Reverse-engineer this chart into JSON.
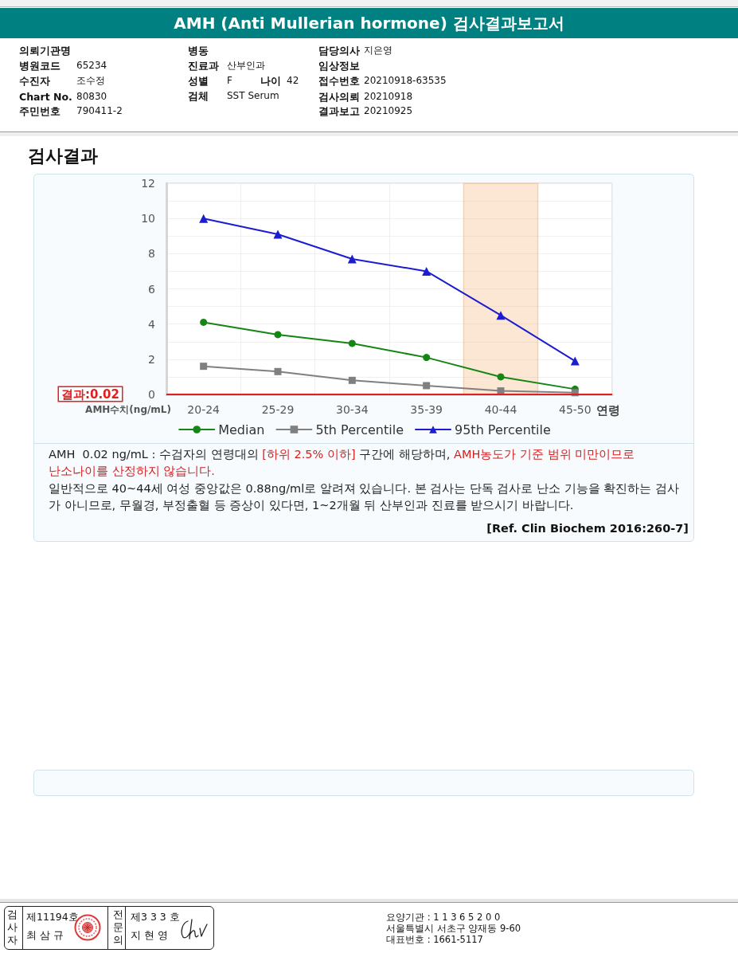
{
  "chart_data": {
    "type": "line",
    "title": "AMH (Anti Mullerian hormone) 검사결과보고서",
    "subtitle": "검사결과",
    "xlabel": "연령",
    "ylabel": "AMH수치(ng/mL)",
    "categories": [
      "20-24",
      "25-29",
      "30-34",
      "35-39",
      "40-44",
      "45-50"
    ],
    "series": [
      {
        "name": "Median",
        "color": "#158515",
        "marker": "circle",
        "values": [
          4.1,
          3.4,
          2.9,
          2.1,
          1.0,
          0.3
        ]
      },
      {
        "name": "5th Percentile",
        "color": "#808080",
        "marker": "square",
        "values": [
          1.6,
          1.3,
          0.8,
          0.5,
          0.2,
          0.1
        ]
      },
      {
        "name": "95th Percentile",
        "color": "#1c1cd0",
        "marker": "triangle",
        "values": [
          10.0,
          9.1,
          7.7,
          7.0,
          4.5,
          1.9
        ]
      }
    ],
    "ylim": [
      0,
      12
    ],
    "yticks": [
      0,
      {
        "value": 1,
        "label": null
      },
      2,
      {
        "value": 3,
        "label": null
      },
      4,
      {
        "value": 5,
        "label": null
      },
      6,
      {
        "value": 7,
        "label": null
      },
      8,
      {
        "value": 9,
        "label": null
      },
      10,
      {
        "value": 11,
        "label": null
      },
      12
    ],
    "grid": true,
    "legend": "bottom",
    "line_style": "solid",
    "ref_lines": [
      {
        "axis": "y",
        "value": 0.02,
        "label": "결과:0.02",
        "color": "#e02020"
      }
    ],
    "bands": [
      {
        "axis": "x",
        "from": "40-44",
        "to": "40-44",
        "color": "#f0a050"
      }
    ],
    "annotations": [
      "의뢰기관명",
      "병원코드",
      "65234",
      "수진자",
      "조수정",
      "Chart No.",
      "80830",
      "주민번호",
      "790411-2",
      "병동",
      "진료과",
      "산부인과",
      "성별",
      "F",
      "나이",
      "42",
      "검체",
      "SST Serum",
      "담당의사",
      "지은영",
      "임상정보",
      "접수번호",
      "20210918-63535",
      "검사의뢰",
      "20210918",
      "결과보고",
      "20210925",
      "AMH  0.02 ng/mL : 수검자의 연령대의",
      "[하위 2.5% 이하]",
      "구간에 해당하며,",
      "AMH농도가 기준 범위 미만이므로",
      "난소나이를 산정하지 않습니다.",
      "일반적으로 40~44세 여성 중앙값은 0.88ng/ml로 알려져 있습니다. 본 검사는 단독 검사로 난소 기능을 확진하는 검사가 아니므로, 무월경, 부정출혈 등 증상이 있다면, 1~2개월 뒤 산부인과 진료를 받으시기 바랍니다.",
      "[Ref. Clin Biochem 2016:260-7]",
      "검사자",
      "제11194호",
      "최 삼 규",
      "전문의",
      "제3 3 3 호",
      "지 현 영",
      "요양기관 : 1 1 3 6 5 2 0 0",
      "서울특별시 서초구 양재동 9-60",
      "대표번호 : 1661-5117"
    ]
  }
}
